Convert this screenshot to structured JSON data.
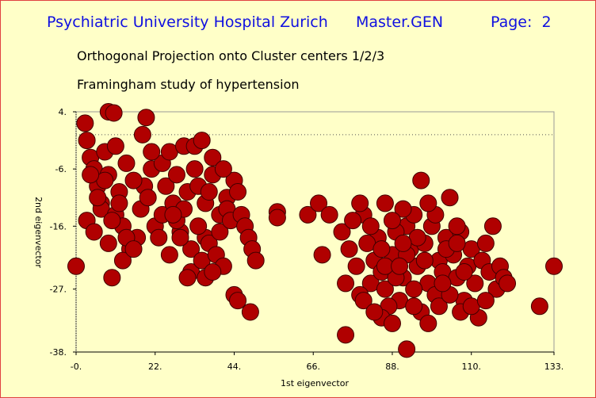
{
  "header": {
    "institution": "Psychiatric University Hospital Zurich",
    "program": "Master.GEN",
    "page": "Page:  2"
  },
  "subtitles": [
    "Orthogonal Projection onto Cluster centers 1/2/3",
    "Framingham study of hypertension"
  ],
  "chart_data": {
    "type": "scatter",
    "x_label": "1st eigenvector",
    "y_label": "2nd eigenvector",
    "color": "#b00000",
    "zero_line": true,
    "xlim": [
      0,
      133
    ],
    "ylim": [
      -38,
      4
    ],
    "xticks": [
      {
        "value": 0,
        "label": "-0."
      },
      {
        "value": 22,
        "label": "22."
      },
      {
        "value": 44,
        "label": "44."
      },
      {
        "value": 66,
        "label": "66."
      },
      {
        "value": 88,
        "label": "88."
      },
      {
        "value": 110,
        "label": "110."
      },
      {
        "value": 133,
        "label": "133."
      }
    ],
    "yticks": [
      {
        "value": 4,
        "label": "4."
      },
      {
        "value": -6,
        "label": "-6."
      },
      {
        "value": -16,
        "label": "-16."
      },
      {
        "value": -27,
        "label": "-27."
      },
      {
        "value": -38,
        "label": "-38."
      }
    ],
    "x": [
      0,
      2.5,
      9,
      10.5,
      19.5,
      18.5,
      10,
      75,
      92,
      129,
      44,
      45,
      48.5,
      56,
      56,
      64.5,
      67.5,
      70.5,
      133,
      68.5,
      3,
      4,
      5,
      6,
      7,
      8,
      9,
      11,
      12,
      14,
      3,
      5,
      7,
      9,
      11,
      13,
      15,
      17,
      19,
      21,
      6,
      8,
      10,
      12,
      14,
      16,
      18,
      20,
      22,
      24,
      24,
      25,
      26,
      27,
      28,
      29,
      30,
      31,
      32,
      33,
      26,
      28,
      30,
      32,
      34,
      36,
      38,
      40,
      42,
      44,
      34,
      35,
      36,
      37,
      38,
      39,
      40,
      41,
      42,
      43,
      45,
      46,
      47,
      48,
      49,
      50,
      36,
      38,
      33,
      29,
      4,
      13,
      16,
      21,
      23,
      31,
      35,
      37,
      41,
      27,
      74,
      76,
      78,
      80,
      82,
      84,
      86,
      88,
      90,
      92,
      75,
      77,
      79,
      81,
      83,
      85,
      87,
      89,
      91,
      93,
      94,
      95,
      96,
      97,
      98,
      99,
      100,
      101,
      102,
      103,
      104,
      105,
      106,
      107,
      108,
      109,
      110,
      111,
      112,
      113,
      114,
      115,
      116,
      117,
      118,
      119,
      120,
      85,
      88,
      91,
      80,
      83,
      86,
      89,
      92,
      95,
      98,
      101,
      104,
      107,
      79,
      82,
      85,
      88,
      91,
      94,
      97,
      100,
      103,
      106,
      86,
      90,
      94,
      98,
      102,
      106,
      110,
      114,
      96,
      108
    ],
    "values": [
      -23,
      2,
      4,
      3.8,
      3,
      0,
      -25,
      -35,
      -37.5,
      -30,
      -28,
      -29,
      -31,
      -13.5,
      -14.5,
      -14,
      -12,
      -14,
      -23,
      -21,
      -1,
      -4,
      -6,
      -9,
      -12,
      -3,
      -7,
      -2,
      -10,
      -5,
      -15,
      -17,
      -13,
      -19,
      -14,
      -16,
      -20,
      -18,
      -9,
      -6,
      -11,
      -8,
      -15,
      -12,
      -18,
      -8,
      -13,
      -11,
      -16,
      -14,
      -5,
      -9,
      -3,
      -12,
      -7,
      -17,
      -2,
      -10,
      -20,
      -6,
      -21,
      -15,
      -13,
      -24,
      -9,
      -18,
      -4,
      -14,
      -11,
      -8,
      -16,
      -22,
      -12,
      -19,
      -7,
      -21,
      -17,
      -23,
      -13,
      -15,
      -10,
      -14,
      -16,
      -18,
      -20,
      -22,
      -25,
      -24,
      -2,
      -18,
      -7,
      -22,
      -20,
      -3,
      -18,
      -25,
      -1,
      -10,
      -6,
      -14,
      -17,
      -20,
      -23,
      -14,
      -26,
      -18,
      -12,
      -21,
      -29,
      -16,
      -26,
      -15,
      -28,
      -19,
      -22,
      -24,
      -30,
      -17,
      -25,
      -20,
      -14,
      -23,
      -31,
      -19,
      -26,
      -16,
      -28,
      -22,
      -24,
      -18,
      -11,
      -21,
      -25,
      -17,
      -29,
      -23,
      -20,
      -26,
      -32,
      -22,
      -19,
      -24,
      -16,
      -27,
      -23,
      -25,
      -26,
      -32,
      -33,
      -13,
      -29,
      -31,
      -27,
      -25,
      -21,
      -18,
      -33,
      -30,
      -28,
      -31,
      -12,
      -16,
      -20,
      -15,
      -19,
      -27,
      -22,
      -14,
      -20,
      -16,
      -23,
      -23,
      -30,
      -12,
      -26,
      -19,
      -30,
      -29,
      -8,
      -24
    ]
  }
}
